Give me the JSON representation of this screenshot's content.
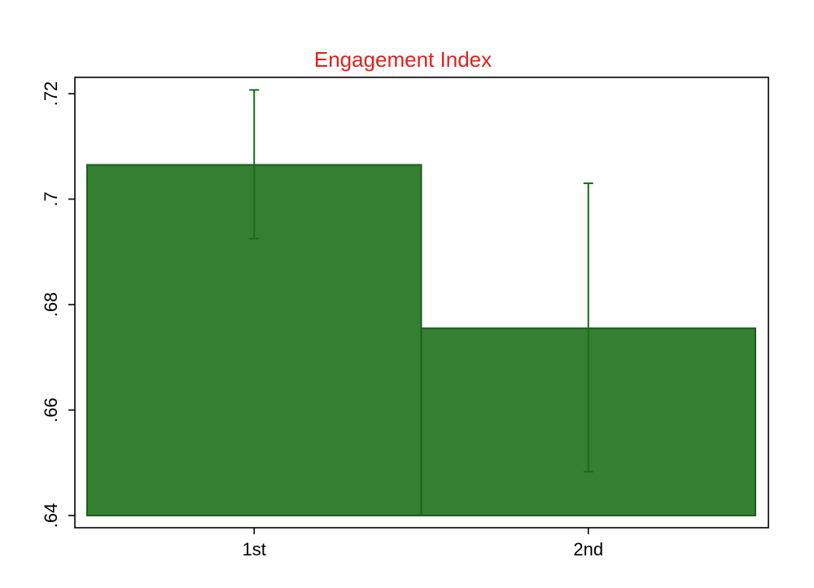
{
  "chart_data": {
    "type": "bar",
    "title": "Engagement Index",
    "categories": [
      "1st",
      "2nd"
    ],
    "values": [
      0.7065,
      0.6755
    ],
    "error_bars": [
      {
        "low": 0.6925,
        "high": 0.7207
      },
      {
        "low": 0.6483,
        "high": 0.703
      }
    ],
    "y_ticks": [
      0.64,
      0.66,
      0.68,
      0.7,
      0.72
    ],
    "y_tick_labels": [
      ".64",
      ".66",
      ".68",
      ".7",
      ".72"
    ],
    "ylim": [
      0.64,
      0.7225
    ],
    "bar_color": "#347f32",
    "bar_edge_color": "#1d5e1b",
    "error_color": "#1a6b17",
    "title_color": "#e0211e",
    "grid": false
  }
}
